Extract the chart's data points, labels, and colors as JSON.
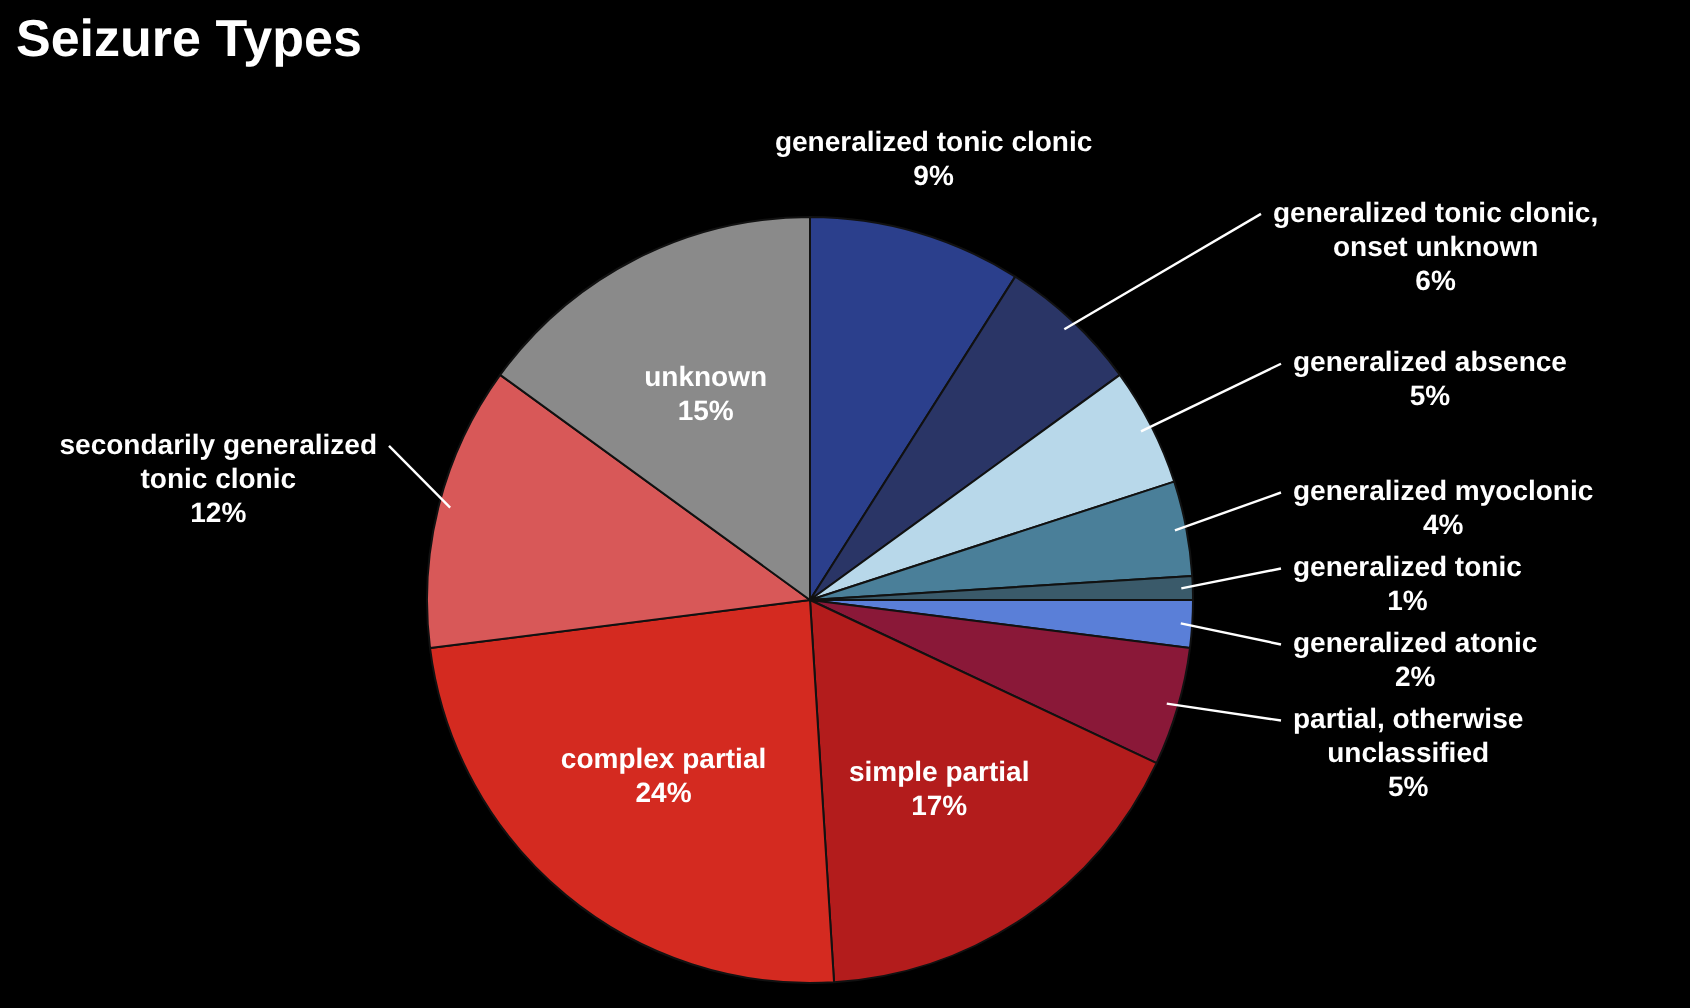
{
  "chart_data": {
    "type": "pie",
    "title": "Seizure Types",
    "legend": false,
    "categories": [
      "generalized tonic clonic",
      "generalized tonic clonic, onset unknown",
      "generalized absence",
      "generalized myoclonic",
      "generalized tonic",
      "generalized atonic",
      "partial, otherwise unclassified",
      "simple partial",
      "complex partial",
      "secondarily generalized tonic clonic",
      "unknown"
    ],
    "values": [
      9,
      6,
      5,
      4,
      1,
      2,
      5,
      17,
      24,
      12,
      15
    ],
    "value_labels": [
      "9%",
      "6%",
      "5%",
      "4%",
      "1%",
      "2%",
      "5%",
      "17%",
      "24%",
      "12%",
      "15%"
    ],
    "colors": [
      "#2b3f8c",
      "#2a3566",
      "#b8d8ea",
      "#4a7f99",
      "#3a5a6a",
      "#5a7fd8",
      "#8a1838",
      "#b31c1c",
      "#d42a20",
      "#d85858",
      "#8a8a8a"
    ]
  }
}
